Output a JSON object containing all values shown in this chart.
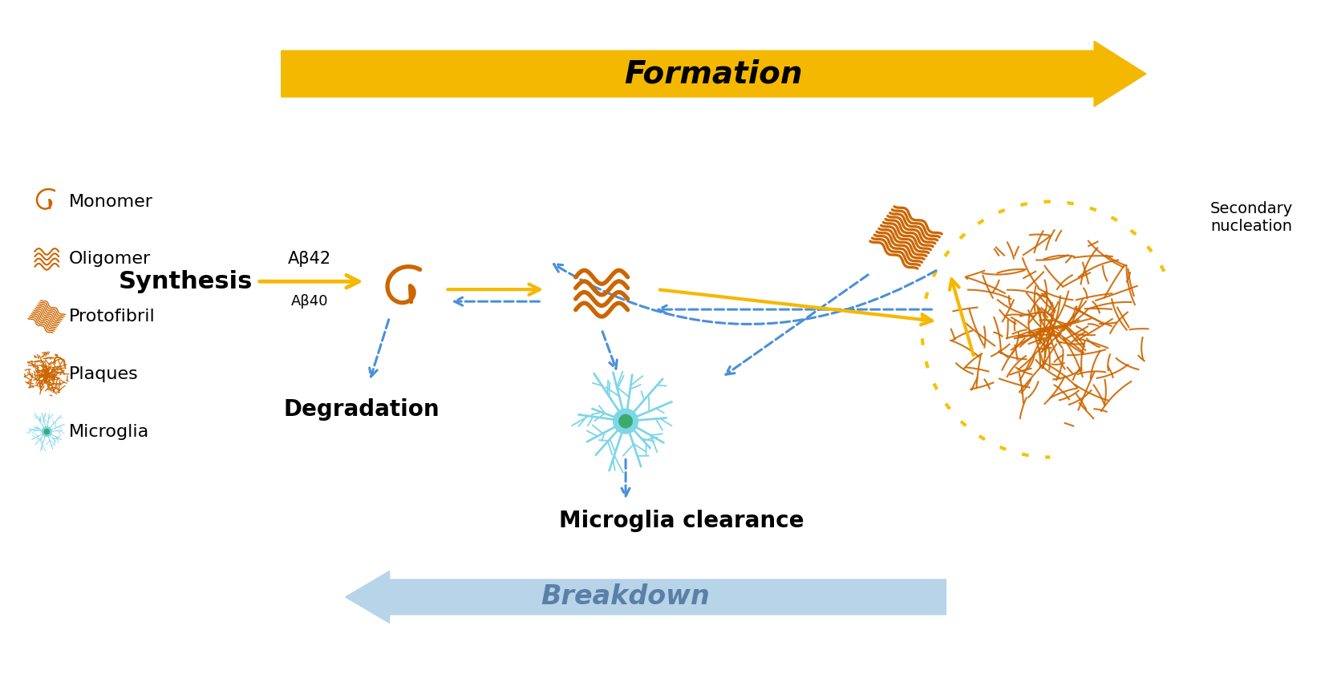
{
  "bg_color": "#ffffff",
  "orange": "#CC6600",
  "orange_stroke": "#CC6600",
  "yellow_arrow": "#F5B800",
  "blue_dashed": "#4A90D9",
  "blue_breakdown": "#B8D4E8",
  "formation_text": "Formation",
  "breakdown_text": "Breakdown",
  "synthesis_text": "Synthesis",
  "ab42_text": "Aβ42",
  "ab40_text": "Aβ40",
  "degradation_text": "Degradation",
  "microglia_text": "Microglia clearance",
  "secondary_text": "Secondary\nnucleation",
  "legend_items": [
    "Monomer",
    "Oligomer",
    "Protofibril",
    "Plaques",
    "Microglia"
  ],
  "fig_width": 16.52,
  "fig_height": 8.51,
  "dpi": 100
}
